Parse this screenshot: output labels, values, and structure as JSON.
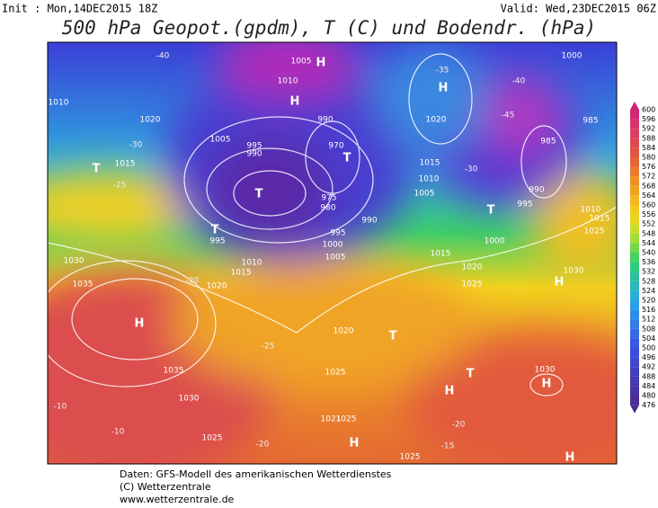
{
  "header": {
    "init": "Init : Mon,14DEC2015 18Z",
    "valid": "Valid: Wed,23DEC2015 06Z",
    "title": "500 hPa Geopot.(gpdm), T (C) und Bodendr. (hPa)"
  },
  "colorbar": {
    "ticks": [
      600,
      596,
      592,
      588,
      584,
      580,
      576,
      572,
      568,
      564,
      560,
      556,
      552,
      548,
      544,
      540,
      536,
      532,
      528,
      524,
      520,
      516,
      512,
      508,
      504,
      500,
      496,
      492,
      488,
      484,
      480,
      476
    ]
  },
  "map_labels": [
    "1010",
    "1020",
    "1015",
    "T",
    "1005",
    "995",
    "990",
    "1005",
    "H",
    "1010",
    "990",
    "H",
    "970",
    "T",
    "975",
    "980",
    "990",
    "995",
    "1000",
    "1005",
    "T",
    "T",
    "995",
    "1030",
    "1035",
    "H",
    "1035",
    "1030",
    "1025",
    "1020",
    "1015",
    "1010",
    "1020",
    "1025",
    "T",
    "1015",
    "1020",
    "1025",
    "1030",
    "H",
    "1030",
    "H",
    "H",
    "T",
    "1021",
    "1025",
    "H",
    "1025",
    "H",
    "1020",
    "H",
    "1015",
    "1010",
    "1005",
    "1000",
    "995",
    "T",
    "990",
    "985",
    "985",
    "1000",
    "1010",
    "1015",
    "1025"
  ],
  "temp_labels": [
    "-40",
    "-30",
    "-25",
    "-10",
    "-10",
    "-15",
    "-20",
    "-25",
    "-20",
    "-20",
    "-30",
    "-35",
    "-40",
    "-45"
  ],
  "footer": [
    "Daten: GFS-Modell des amerikanischen Wetterdienstes",
    "(C) Wetterzentrale",
    "www.wetterzentrale.de"
  ]
}
